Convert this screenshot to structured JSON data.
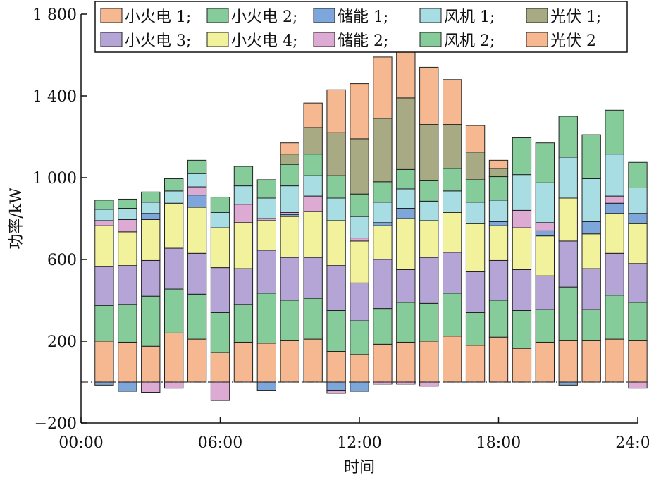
{
  "chart_data": {
    "type": "bar",
    "stacked": true,
    "xlabel": "时间",
    "ylabel": "功率/kW",
    "ylim": [
      -200,
      1800
    ],
    "yticks": [
      -200,
      200,
      600,
      1000,
      1400,
      1800
    ],
    "ytick_labels": [
      "−200",
      "200",
      "600",
      "1 000",
      "1 400",
      "1 800"
    ],
    "xlim": [
      0,
      24
    ],
    "xticks": [
      0,
      6,
      12,
      18,
      24
    ],
    "xtick_labels": [
      "00:00",
      "06:00",
      "12:00",
      "18:00",
      "24:00"
    ],
    "x": [
      1,
      2,
      3,
      4,
      5,
      6,
      7,
      8,
      9,
      10,
      11,
      12,
      13,
      14,
      15,
      16,
      17,
      18,
      19,
      20,
      21,
      22,
      23,
      24
    ],
    "legend_position": "top",
    "baseline_style": "dash-dot",
    "series": [
      {
        "name": "小火电 1",
        "color": "#F6B891",
        "values": [
          200,
          195,
          175,
          240,
          210,
          145,
          195,
          190,
          205,
          210,
          150,
          135,
          185,
          195,
          200,
          225,
          180,
          220,
          165,
          195,
          205,
          205,
          210,
          205
        ]
      },
      {
        "name": "小火电 2",
        "color": "#86CC9A",
        "values": [
          175,
          185,
          245,
          215,
          220,
          195,
          185,
          245,
          195,
          200,
          200,
          165,
          175,
          195,
          185,
          210,
          160,
          180,
          185,
          160,
          260,
          150,
          215,
          185
        ]
      },
      {
        "name": "小火电 3",
        "color": "#B5A5D6",
        "values": [
          190,
          190,
          175,
          200,
          200,
          220,
          175,
          210,
          210,
          200,
          220,
          185,
          240,
          160,
          225,
          200,
          200,
          195,
          200,
          165,
          225,
          200,
          205,
          190
        ]
      },
      {
        "name": "小火电 4",
        "color": "#F2F19C",
        "values": [
          200,
          165,
          200,
          220,
          225,
          195,
          225,
          145,
          200,
          225,
          220,
          205,
          165,
          250,
          180,
          195,
          235,
          170,
          205,
          195,
          210,
          170,
          195,
          195
        ]
      },
      {
        "name": "储能 1",
        "color": "#7DA6DB",
        "values": [
          -15,
          -45,
          30,
          0,
          60,
          0,
          0,
          -40,
          10,
          0,
          -40,
          -45,
          15,
          50,
          0,
          0,
          0,
          20,
          0,
          25,
          -15,
          60,
          50,
          50
        ]
      },
      {
        "name": "储能 2",
        "color": "#DDAAD4",
        "values": [
          25,
          60,
          -50,
          -30,
          40,
          -90,
          90,
          10,
          10,
          75,
          -15,
          15,
          -10,
          -10,
          -20,
          0,
          0,
          0,
          85,
          40,
          0,
          0,
          35,
          -30
        ]
      },
      {
        "name": "风机 1",
        "color": "#A8DDE3",
        "values": [
          55,
          55,
          55,
          60,
          65,
          75,
          90,
          100,
          130,
          100,
          110,
          105,
          100,
          95,
          95,
          105,
          105,
          105,
          175,
          195,
          200,
          210,
          205,
          125
        ]
      },
      {
        "name": "风机 2",
        "color": "#86CC9A",
        "values": [
          45,
          45,
          50,
          60,
          65,
          75,
          95,
          90,
          105,
          105,
          110,
          110,
          100,
          95,
          100,
          110,
          110,
          115,
          180,
          195,
          200,
          215,
          215,
          125
        ]
      },
      {
        "name": "光伏 1",
        "color": "#A8AA84",
        "values": [
          0,
          0,
          0,
          0,
          0,
          0,
          0,
          0,
          50,
          130,
          210,
          270,
          310,
          350,
          275,
          215,
          135,
          40,
          0,
          0,
          0,
          0,
          0,
          0
        ]
      },
      {
        "name": "光伏 2",
        "color": "#F6B891",
        "values": [
          0,
          0,
          0,
          0,
          0,
          0,
          0,
          0,
          55,
          120,
          210,
          270,
          300,
          300,
          280,
          220,
          130,
          40,
          0,
          0,
          0,
          0,
          0,
          0
        ]
      }
    ]
  },
  "legend_rows": [
    [
      0,
      1,
      4,
      6,
      8
    ],
    [
      2,
      3,
      5,
      7,
      9
    ]
  ],
  "legend_separator": ";"
}
